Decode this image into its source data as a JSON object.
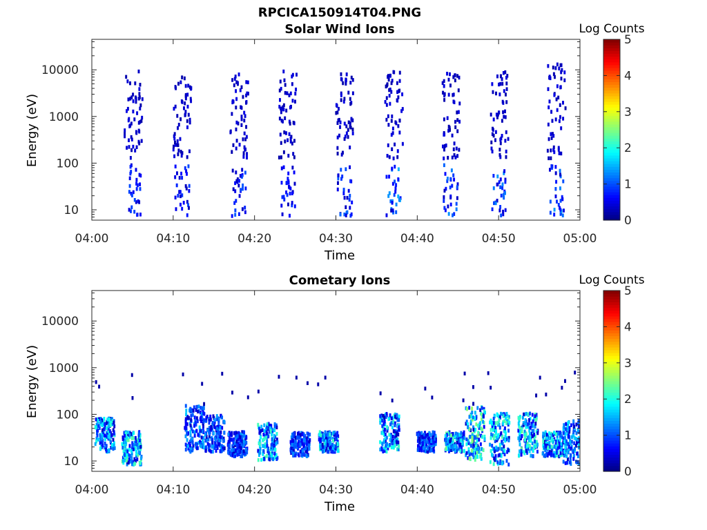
{
  "figure": {
    "title": "RPCICA150914T04.PNG"
  },
  "chart_data": [
    {
      "type": "heatmap",
      "title": "Solar Wind Ions",
      "xlabel": "Time",
      "ylabel": "Energy (eV)",
      "x_ticks": [
        "04:00",
        "04:10",
        "04:20",
        "04:30",
        "04:40",
        "04:50",
        "05:00"
      ],
      "x_range": [
        "04:00",
        "05:00"
      ],
      "y_scale": "log",
      "y_ticks": [
        10,
        100,
        1000,
        10000
      ],
      "y_tick_labels": [
        "10",
        "100",
        "1000",
        "10000"
      ],
      "ylim": [
        6,
        45000
      ],
      "colorbar": {
        "label": "Log Counts",
        "range": [
          0,
          5
        ],
        "ticks": [
          "0",
          "1",
          "2",
          "3",
          "4",
          "5"
        ],
        "colormap": "jet"
      },
      "bursts": [
        {
          "t": "04:05",
          "emax": 9000,
          "low_intensity": 0.7
        },
        {
          "t": "04:11",
          "emax": 9500,
          "low_intensity": 0.7
        },
        {
          "t": "04:18",
          "emax": 8000,
          "low_intensity": 0.8
        },
        {
          "t": "04:24",
          "emax": 9000,
          "low_intensity": 0.6
        },
        {
          "t": "04:31",
          "emax": 9000,
          "low_intensity": 0.9
        },
        {
          "t": "04:37",
          "emax": 9000,
          "low_intensity": 1.2
        },
        {
          "t": "04:44",
          "emax": 9000,
          "low_intensity": 1.1
        },
        {
          "t": "04:50",
          "emax": 9000,
          "low_intensity": 1.1
        },
        {
          "t": "04:57",
          "emax": 13000,
          "low_intensity": 1.1
        }
      ]
    },
    {
      "type": "heatmap",
      "title": "Cometary Ions",
      "xlabel": "Time",
      "ylabel": "Energy (eV)",
      "x_ticks": [
        "04:00",
        "04:10",
        "04:20",
        "04:30",
        "04:40",
        "04:50",
        "05:00"
      ],
      "x_range": [
        "04:00",
        "05:00"
      ],
      "y_scale": "log",
      "y_ticks": [
        10,
        100,
        1000,
        10000
      ],
      "y_tick_labels": [
        "10",
        "100",
        "1000",
        "10000"
      ],
      "ylim": [
        6,
        45000
      ],
      "colorbar": {
        "label": "Log Counts",
        "range": [
          0,
          5
        ],
        "ticks": [
          "0",
          "1",
          "2",
          "3",
          "4",
          "5"
        ],
        "colormap": "jet"
      },
      "bursts": [
        {
          "t": "04:01.5",
          "emin": 15,
          "emax": 80,
          "peak": 1.8
        },
        {
          "t": "04:04.8",
          "emin": 8,
          "emax": 40,
          "peak": 2.2
        },
        {
          "t": "04:12.5",
          "emin": 15,
          "emax": 150,
          "peak": 1.3
        },
        {
          "t": "04:15.0",
          "emin": 15,
          "emax": 90,
          "peak": 1.2
        },
        {
          "t": "04:17.8",
          "emin": 12,
          "emax": 40,
          "peak": 1.1
        },
        {
          "t": "04:21.5",
          "emin": 10,
          "emax": 60,
          "peak": 2.0
        },
        {
          "t": "04:25.5",
          "emin": 12,
          "emax": 40,
          "peak": 1.1
        },
        {
          "t": "04:29.0",
          "emin": 15,
          "emax": 40,
          "peak": 1.9
        },
        {
          "t": "04:36.5",
          "emin": 15,
          "emax": 100,
          "peak": 1.9
        },
        {
          "t": "04:41.0",
          "emin": 15,
          "emax": 40,
          "peak": 1.1
        },
        {
          "t": "04:44.5",
          "emin": 15,
          "emax": 40,
          "peak": 2.2
        },
        {
          "t": "04:47.0",
          "emin": 10,
          "emax": 140,
          "peak": 2.4
        },
        {
          "t": "04:50.0",
          "emin": 8,
          "emax": 100,
          "peak": 2.0
        },
        {
          "t": "04:53.5",
          "emin": 12,
          "emax": 100,
          "peak": 2.1
        },
        {
          "t": "04:56.5",
          "emin": 12,
          "emax": 40,
          "peak": 1.9
        },
        {
          "t": "04:59.0",
          "emin": 8,
          "emax": 70,
          "peak": 1.5
        }
      ]
    }
  ]
}
